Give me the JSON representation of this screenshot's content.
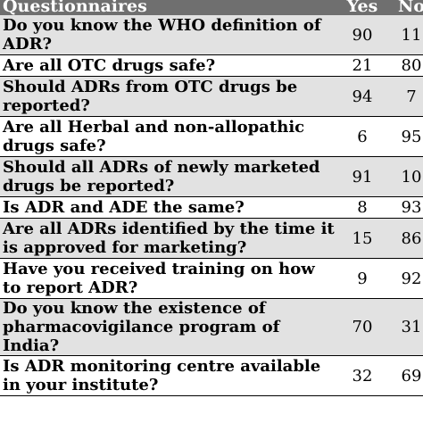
{
  "table": {
    "headers": {
      "question": "Questionnaires",
      "yes": "Yes",
      "no": "No"
    },
    "rows": [
      {
        "question": "Do you know the WHO definition of ADR?",
        "yes": "90",
        "no": "11"
      },
      {
        "question": "Are all OTC drugs safe?",
        "yes": "21",
        "no": "80"
      },
      {
        "question": "Should ADRs from OTC drugs be reported?",
        "yes": "94",
        "no": "7"
      },
      {
        "question": "Are all Herbal and non-allopathic drugs safe?",
        "yes": "6",
        "no": "95"
      },
      {
        "question": "Should all ADRs of newly marketed drugs be reported?",
        "yes": "91",
        "no": "10"
      },
      {
        "question": "Is ADR and ADE the same?",
        "yes": "8",
        "no": "93"
      },
      {
        "question": "Are all ADRs identified by the time it is approved for marketing?",
        "yes": "15",
        "no": "86"
      },
      {
        "question": "Have you received training on how to report ADR?",
        "yes": "9",
        "no": "92"
      },
      {
        "question": "Do you know the existence of pharmacovigilance program of India?",
        "yes": "70",
        "no": "31"
      },
      {
        "question": "Is ADR monitoring centre available in your institute?",
        "yes": "32",
        "no": "69"
      }
    ]
  }
}
